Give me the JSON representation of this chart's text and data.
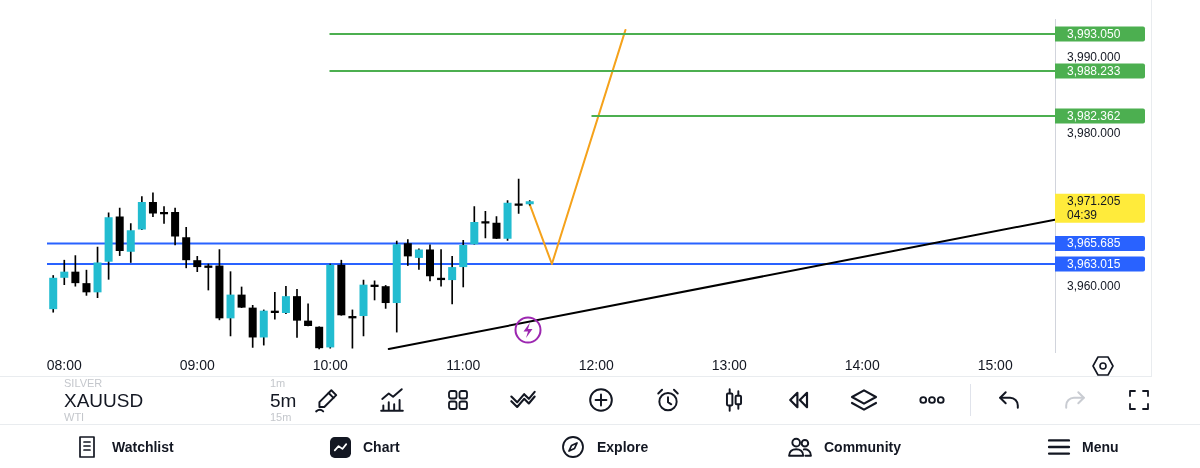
{
  "chart_data": {
    "type": "candlestick",
    "x": [
      7.9167,
      8,
      8.0833,
      8.1667,
      8.25,
      8.3333,
      8.4167,
      8.5,
      8.5833,
      8.6667,
      8.75,
      8.8333,
      8.9167,
      9,
      9.0833,
      9.1667,
      9.25,
      9.3333,
      9.4167,
      9.5,
      9.5833,
      9.6667,
      9.75,
      9.8333,
      9.9167,
      10,
      10.0833,
      10.1667,
      10.25,
      10.3333,
      10.4167,
      10.5,
      10.5833,
      10.6667,
      10.75,
      10.8333,
      10.9167,
      11,
      11.0833,
      11.1667,
      11.25,
      11.3333,
      11.4167,
      11.5
    ],
    "ohlc": [
      [
        3957.1,
        3961.5,
        3956.7,
        3961.2
      ],
      [
        3961.2,
        3963.5,
        3960.3,
        3962.0
      ],
      [
        3962.0,
        3964.1,
        3960.1,
        3960.5
      ],
      [
        3960.5,
        3962.2,
        3958.9,
        3959.3
      ],
      [
        3959.3,
        3965.2,
        3958.6,
        3963.2
      ],
      [
        3963.3,
        3969.7,
        3961.0,
        3969.1
      ],
      [
        3969.2,
        3970.3,
        3964.1,
        3964.7
      ],
      [
        3964.6,
        3968.3,
        3963.2,
        3967.4
      ],
      [
        3967.5,
        3971.8,
        3967.5,
        3971.1
      ],
      [
        3971.1,
        3972.3,
        3969.2,
        3969.6
      ],
      [
        3969.8,
        3970.5,
        3968.3,
        3969.5
      ],
      [
        3969.8,
        3970.3,
        3965.5,
        3966.6
      ],
      [
        3966.5,
        3967.8,
        3962.5,
        3963.5
      ],
      [
        3963.5,
        3964.0,
        3962.0,
        3962.6
      ],
      [
        3962.8,
        3963.0,
        3959.6,
        3962.5
      ],
      [
        3962.8,
        3964.9,
        3955.7,
        3955.9
      ],
      [
        3955.9,
        3962.0,
        3953.6,
        3959.0
      ],
      [
        3959.0,
        3960.0,
        3957.3,
        3957.3
      ],
      [
        3957.3,
        3957.6,
        3952.1,
        3953.4
      ],
      [
        3953.4,
        3957.0,
        3952.4,
        3956.9
      ],
      [
        3956.9,
        3959.3,
        3955.8,
        3956.6
      ],
      [
        3956.6,
        3960.1,
        3956.5,
        3958.8
      ],
      [
        3958.8,
        3959.7,
        3953.4,
        3955.6
      ],
      [
        3955.6,
        3957.8,
        3954.9,
        3954.9
      ],
      [
        3954.8,
        3954.8,
        3951.9,
        3952.0
      ],
      [
        3952.1,
        3963.0,
        3952.0,
        3962.9
      ],
      [
        3962.9,
        3963.5,
        3956.3,
        3956.3
      ],
      [
        3956.2,
        3957.0,
        3952.0,
        3955.9
      ],
      [
        3956.2,
        3960.9,
        3953.6,
        3960.3
      ],
      [
        3960.3,
        3960.8,
        3958.3,
        3960.0
      ],
      [
        3960.1,
        3960.2,
        3957.2,
        3957.9
      ],
      [
        3957.9,
        3966.0,
        3954.1,
        3965.6
      ],
      [
        3965.7,
        3966.2,
        3962.8,
        3964.0
      ],
      [
        3963.8,
        3965.0,
        3962.3,
        3964.9
      ],
      [
        3964.9,
        3965.5,
        3960.8,
        3961.4
      ],
      [
        3961.2,
        3964.9,
        3960.1,
        3960.9
      ],
      [
        3960.9,
        3964.0,
        3957.8,
        3962.6
      ],
      [
        3962.6,
        3966.1,
        3960.0,
        3965.5
      ],
      [
        3965.6,
        3970.5,
        3965.6,
        3968.5
      ],
      [
        3968.6,
        3969.9,
        3966.4,
        3968.3
      ],
      [
        3968.4,
        3969.2,
        3966.3,
        3966.3
      ],
      [
        3966.3,
        3971.3,
        3966.1,
        3971.0
      ],
      [
        3970.9,
        3974.1,
        3969.6,
        3970.6
      ],
      [
        3970.8,
        3971.3,
        3970.7,
        3971.205
      ]
    ],
    "colors": [
      "#22bcd0",
      "#22bcd0",
      "#000000",
      "#000000",
      "#22bcd0",
      "#22bcd0",
      "#000000",
      "#22bcd0",
      "#22bcd0",
      "#000000",
      "#000000",
      "#000000",
      "#000000",
      "#000000",
      "#000000",
      "#000000",
      "#22bcd0",
      "#000000",
      "#000000",
      "#22bcd0",
      "#000000",
      "#22bcd0",
      "#000000",
      "#000000",
      "#000000",
      "#22bcd0",
      "#000000",
      "#000000",
      "#22bcd0",
      "#000000",
      "#000000",
      "#22bcd0",
      "#000000",
      "#22bcd0",
      "#000000",
      "#000000",
      "#22bcd0",
      "#22bcd0",
      "#22bcd0",
      "#000000",
      "#000000",
      "#22bcd0",
      "#000000",
      "#22bcd0"
    ],
    "series": [
      {
        "type": "line",
        "x": [
          10,
          15.45
        ],
        "values": [
          3993.05,
          3993.05
        ],
        "color": "#4caf50",
        "value_labels": [
          null,
          "3,993.050"
        ]
      },
      {
        "type": "line",
        "x": [
          10,
          15.45
        ],
        "values": [
          3988.233,
          3988.233
        ],
        "color": "#4caf50",
        "value_labels": [
          null,
          "3,988.233"
        ]
      },
      {
        "type": "line",
        "x": [
          11.97,
          15.45
        ],
        "values": [
          3982.362,
          3982.362
        ],
        "color": "#4caf50",
        "value_labels": [
          null,
          "3,982.362"
        ]
      },
      {
        "type": "line",
        "x": [
          11.5,
          11.6667,
          12.22
        ],
        "values": [
          3970.8,
          3963.0,
          3993.6
        ],
        "color": "#f5a21b"
      },
      {
        "type": "line",
        "x": [
          10.44,
          15.45
        ],
        "values": [
          3951.9,
          3968.8
        ],
        "color": "#000000"
      }
    ],
    "ref_lines": [
      {
        "axis": "y",
        "value": 3965.685,
        "label": "3,965.685",
        "color": "#2962ff"
      },
      {
        "axis": "y",
        "value": 3963.015,
        "label": "3,963.015",
        "color": "#2962ff"
      }
    ],
    "annotations": [
      "3,971.205",
      "04:39",
      "SILVER",
      "1m",
      "XAUUSD",
      "5m",
      "WTI",
      "15m",
      "Watchlist",
      "Chart",
      "Explore",
      "Community",
      "Menu"
    ],
    "xlim": [
      7.87,
      15.45
    ],
    "xticks": [
      {
        "value": 8,
        "label": "08:00"
      },
      {
        "value": 9,
        "label": "09:00"
      },
      {
        "value": 10,
        "label": "10:00"
      },
      {
        "value": 11,
        "label": "11:00"
      },
      {
        "value": 12,
        "label": "12:00"
      },
      {
        "value": 13,
        "label": "13:00"
      },
      {
        "value": 14,
        "label": "14:00"
      },
      {
        "value": 15,
        "label": "15:00"
      }
    ],
    "ylim": [
      3951.5,
      3995
    ],
    "yticks": [
      {
        "value": 3960,
        "label": "3,960.000"
      },
      {
        "value": 3980,
        "label": "3,980.000"
      },
      {
        "value": 3990,
        "label": "3,990.000"
      }
    ]
  }
}
